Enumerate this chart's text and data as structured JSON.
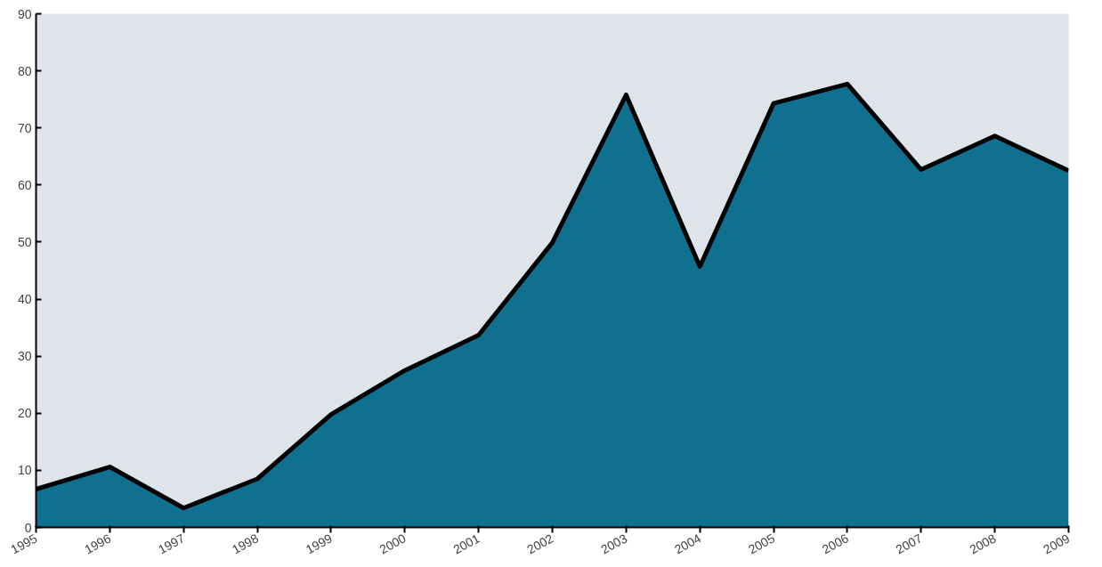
{
  "chart_data": {
    "type": "area",
    "x": [
      1995,
      1996,
      1997,
      1998,
      1999,
      2000,
      2001,
      2002,
      2003,
      2004,
      2005,
      2006,
      2007,
      2008,
      2009
    ],
    "series": [
      {
        "color": "#0f7090",
        "values": [
          6.7,
          10.6,
          3.4,
          8.5,
          19.8,
          27.5,
          33.7,
          49.9,
          75.8,
          45.7,
          74.3,
          77.7,
          62.7,
          68.6,
          62.5
        ]
      }
    ],
    "xlim": [
      1995,
      2009
    ],
    "ylim": [
      0,
      90
    ],
    "xticks": [
      1995,
      1996,
      1997,
      1998,
      1999,
      2000,
      2001,
      2002,
      2003,
      2004,
      2005,
      2006,
      2007,
      2008,
      2009
    ],
    "yticks": [
      0,
      10,
      20,
      30,
      40,
      50,
      60,
      70,
      80,
      90
    ],
    "grid": false
  }
}
